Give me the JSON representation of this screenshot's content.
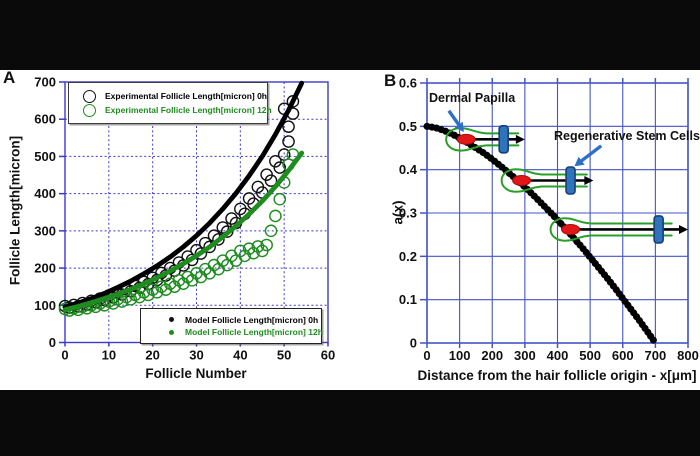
{
  "colors": {
    "grid_a": "#3a3ace",
    "grid_b": "#4454c8",
    "series_black": "#111111",
    "series_green": "#1e8c1e",
    "annotation_arrow_blue": "#2e6fc4",
    "papilla_red": "#e11616",
    "stem_cell_blue": "#2f73bb"
  },
  "chart_data": [
    {
      "id": "A",
      "type": "scatter",
      "xlabel": "Follicle Number",
      "ylabel": "Follicle Length[micron]",
      "xlim": [
        0,
        60
      ],
      "ylim": [
        0,
        700
      ],
      "x_ticks": [
        0,
        10,
        20,
        30,
        40,
        50,
        60
      ],
      "y_ticks": [
        0,
        100,
        200,
        300,
        400,
        500,
        600,
        700
      ],
      "grid": "dashed-blue",
      "legend_top_position": "upper-left",
      "legend_bottom_position": "lower-right",
      "series": [
        {
          "name": "Experimental Follicle Length[micron] 0h",
          "style": "open-circle",
          "color": "#111111",
          "points": [
            [
              0,
              98
            ],
            [
              1,
              94
            ],
            [
              2,
              101
            ],
            [
              3,
              97
            ],
            [
              4,
              106
            ],
            [
              5,
              102
            ],
            [
              6,
              112
            ],
            [
              7,
              108
            ],
            [
              8,
              118
            ],
            [
              9,
              114
            ],
            [
              10,
              126
            ],
            [
              11,
              121
            ],
            [
              12,
              134
            ],
            [
              13,
              129
            ],
            [
              14,
              143
            ],
            [
              15,
              138
            ],
            [
              16,
              152
            ],
            [
              17,
              147
            ],
            [
              18,
              163
            ],
            [
              19,
              157
            ],
            [
              20,
              174
            ],
            [
              21,
              168
            ],
            [
              22,
              187
            ],
            [
              23,
              180
            ],
            [
              24,
              200
            ],
            [
              25,
              193
            ],
            [
              26,
              215
            ],
            [
              27,
              207
            ],
            [
              28,
              231
            ],
            [
              29,
              222
            ],
            [
              30,
              248
            ],
            [
              31,
              239
            ],
            [
              32,
              267
            ],
            [
              33,
              257
            ],
            [
              34,
              287
            ],
            [
              35,
              277
            ],
            [
              36,
              309
            ],
            [
              37,
              298
            ],
            [
              38,
              333
            ],
            [
              39,
              321
            ],
            [
              40,
              359
            ],
            [
              41,
              346
            ],
            [
              42,
              387
            ],
            [
              43,
              373
            ],
            [
              44,
              418
            ],
            [
              45,
              403
            ],
            [
              46,
              451
            ],
            [
              47,
              435
            ],
            [
              48,
              487
            ],
            [
              49,
              470
            ],
            [
              50,
              505
            ],
            [
              50,
              628
            ],
            [
              51,
              540
            ],
            [
              51,
              580
            ],
            [
              52,
              615
            ],
            [
              52,
              648
            ]
          ]
        },
        {
          "name": "Experimental Follicle Length[micron] 12h",
          "style": "open-circle",
          "color": "#1e8c1e",
          "points": [
            [
              0,
              90
            ],
            [
              1,
              86
            ],
            [
              2,
              92
            ],
            [
              3,
              88
            ],
            [
              4,
              96
            ],
            [
              5,
              92
            ],
            [
              6,
              100
            ],
            [
              7,
              96
            ],
            [
              8,
              105
            ],
            [
              9,
              100
            ],
            [
              10,
              110
            ],
            [
              11,
              105
            ],
            [
              12,
              116
            ],
            [
              13,
              110
            ],
            [
              14,
              122
            ],
            [
              15,
              116
            ],
            [
              16,
              128
            ],
            [
              17,
              122
            ],
            [
              18,
              135
            ],
            [
              19,
              128
            ],
            [
              20,
              142
            ],
            [
              21,
              135
            ],
            [
              22,
              150
            ],
            [
              23,
              142
            ],
            [
              24,
              158
            ],
            [
              25,
              150
            ],
            [
              26,
              167
            ],
            [
              27,
              158
            ],
            [
              28,
              176
            ],
            [
              29,
              167
            ],
            [
              30,
              186
            ],
            [
              31,
              176
            ],
            [
              32,
              197
            ],
            [
              33,
              186
            ],
            [
              34,
              208
            ],
            [
              35,
              197
            ],
            [
              36,
              220
            ],
            [
              37,
              208
            ],
            [
              38,
              233
            ],
            [
              39,
              220
            ],
            [
              40,
              246
            ],
            [
              41,
              233
            ],
            [
              42,
              252
            ],
            [
              43,
              240
            ],
            [
              44,
              258
            ],
            [
              45,
              246
            ],
            [
              46,
              262
            ],
            [
              47,
              300
            ],
            [
              48,
              340
            ],
            [
              49,
              385
            ],
            [
              50,
              430
            ],
            [
              51,
              478
            ],
            [
              52,
              505
            ]
          ]
        },
        {
          "name": "Model Follicle Length[micron] 0h",
          "style": "line",
          "color": "#000000",
          "points": [
            [
              0,
              95
            ],
            [
              3,
              106
            ],
            [
              6,
              118
            ],
            [
              9,
              132
            ],
            [
              12,
              148
            ],
            [
              15,
              165
            ],
            [
              18,
              185
            ],
            [
              21,
              206
            ],
            [
              24,
              230
            ],
            [
              27,
              257
            ],
            [
              30,
              287
            ],
            [
              33,
              321
            ],
            [
              36,
              359
            ],
            [
              39,
              401
            ],
            [
              42,
              448
            ],
            [
              45,
              500
            ],
            [
              48,
              559
            ],
            [
              51,
              624
            ],
            [
              54,
              697
            ]
          ]
        },
        {
          "name": "Model Follicle Length[micron] 12h",
          "style": "line",
          "color": "#1e8c1e",
          "points": [
            [
              0,
              88
            ],
            [
              3,
              97
            ],
            [
              6,
              107
            ],
            [
              9,
              118
            ],
            [
              12,
              130
            ],
            [
              15,
              143
            ],
            [
              18,
              158
            ],
            [
              21,
              174
            ],
            [
              24,
              192
            ],
            [
              27,
              212
            ],
            [
              30,
              233
            ],
            [
              33,
              257
            ],
            [
              36,
              284
            ],
            [
              39,
              313
            ],
            [
              42,
              345
            ],
            [
              45,
              380
            ],
            [
              48,
              419
            ],
            [
              51,
              462
            ],
            [
              54,
              509
            ]
          ]
        }
      ]
    },
    {
      "id": "B",
      "type": "line",
      "xlabel": "Distance from the hair follicle origin - x[μm]",
      "ylabel": "a(x)",
      "xlim": [
        0,
        800
      ],
      "ylim": [
        0,
        0.6
      ],
      "x_ticks": [
        0,
        100,
        200,
        300,
        400,
        500,
        600,
        700,
        800
      ],
      "y_ticks": [
        0,
        0.1,
        0.2,
        0.3,
        0.4,
        0.5,
        0.6
      ],
      "grid": "solid-blue",
      "series": [
        {
          "name": "a(x)",
          "style": "thick-dotted",
          "color": "#000000",
          "points": [
            [
              0,
              0.5
            ],
            [
              25,
              0.497
            ],
            [
              50,
              0.491
            ],
            [
              75,
              0.483
            ],
            [
              100,
              0.473
            ],
            [
              125,
              0.462
            ],
            [
              150,
              0.45
            ],
            [
              175,
              0.438
            ],
            [
              200,
              0.424
            ],
            [
              225,
              0.409
            ],
            [
              250,
              0.393
            ],
            [
              275,
              0.377
            ],
            [
              300,
              0.36
            ],
            [
              325,
              0.342
            ],
            [
              350,
              0.323
            ],
            [
              375,
              0.304
            ],
            [
              400,
              0.284
            ],
            [
              425,
              0.264
            ],
            [
              450,
              0.242
            ],
            [
              475,
              0.221
            ],
            [
              500,
              0.198
            ],
            [
              525,
              0.175
            ],
            [
              550,
              0.152
            ],
            [
              575,
              0.128
            ],
            [
              600,
              0.103
            ],
            [
              625,
              0.078
            ],
            [
              650,
              0.053
            ],
            [
              675,
              0.027
            ],
            [
              700,
              0
            ]
          ]
        }
      ],
      "annotations": [
        {
          "text": "Dermal Papilla",
          "arrow_from": [
            67,
            0.536
          ],
          "arrow_to": [
            113,
            0.487
          ]
        },
        {
          "text": "Regenerative Stem Cells",
          "arrow_from": [
            534,
            0.455
          ],
          "arrow_to": [
            452,
            0.408
          ]
        }
      ],
      "follicles": [
        {
          "papilla_x": 120,
          "a": 0.47,
          "tip_x": 280,
          "stem_x": 235,
          "arrow_from": 142,
          "arrow_to": 300
        },
        {
          "papilla_x": 290,
          "a": 0.375,
          "tip_x": 490,
          "stem_x": 440,
          "arrow_from": 315,
          "arrow_to": 510
        },
        {
          "papilla_x": 440,
          "a": 0.262,
          "tip_x": 750,
          "stem_x": 710,
          "arrow_from": 465,
          "arrow_to": 800
        }
      ]
    }
  ]
}
